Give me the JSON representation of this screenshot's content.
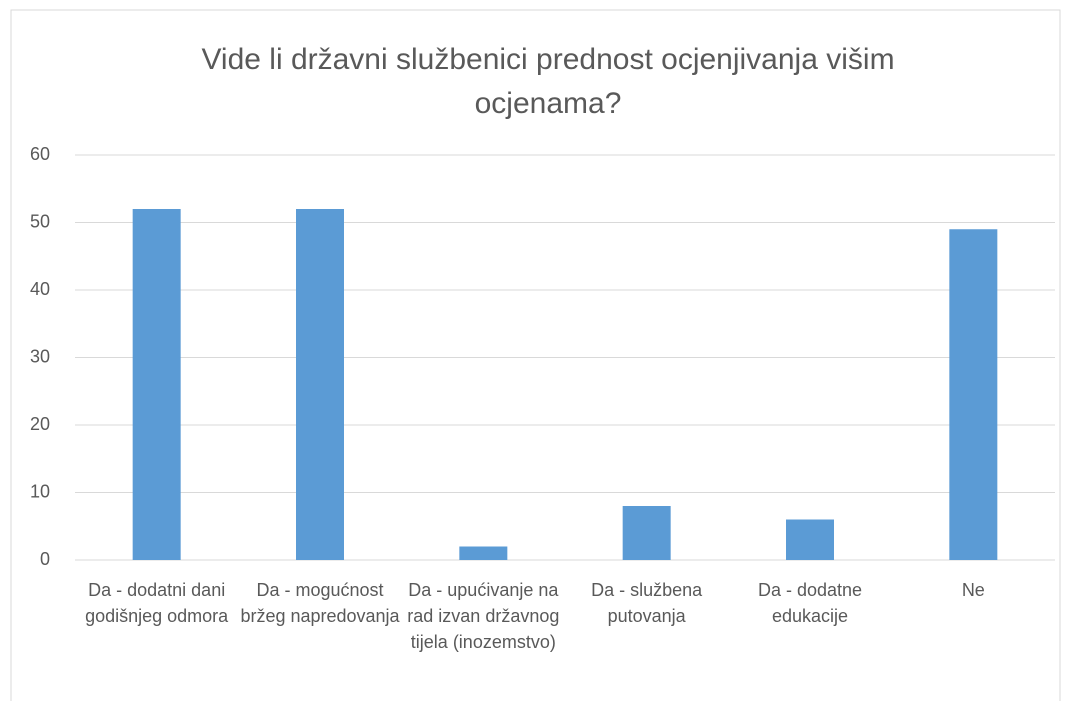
{
  "chart_data": {
    "type": "bar",
    "title": "Vide li državni službenici prednost ocjenjivanja višim ocjenama?",
    "categories": [
      "Da - dodatni dani godišnjeg odmora",
      "Da - mogućnost bržeg napredovanja",
      "Da - upućivanje na rad izvan državnog tijela (inozemstvo)",
      "Da - službena putovanja",
      "Da - dodatne edukacije",
      "Ne"
    ],
    "values": [
      52,
      52,
      2,
      8,
      6,
      49
    ],
    "color": "#5b9bd5",
    "ylim": [
      0,
      60
    ],
    "yticks": [
      0,
      10,
      20,
      30,
      40,
      50,
      60
    ],
    "grid": true
  }
}
